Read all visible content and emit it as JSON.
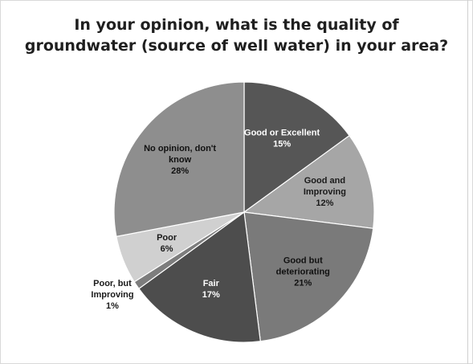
{
  "chart_data": {
    "type": "pie",
    "title_lines": [
      "In your opinion, what is the quality of",
      "groundwater (source of well water) in your area?"
    ],
    "slices": [
      {
        "label_lines": [
          "Good or Excellent"
        ],
        "value": 15,
        "value_text": "15%",
        "color": "#565656",
        "label_color": "#ffffff",
        "label_outside": false
      },
      {
        "label_lines": [
          "Good and",
          "Improving"
        ],
        "value": 12,
        "value_text": "12%",
        "color": "#a6a6a6",
        "label_color": "#1a1a1a",
        "label_outside": false
      },
      {
        "label_lines": [
          "Good but",
          "deteriorating"
        ],
        "value": 21,
        "value_text": "21%",
        "color": "#7a7a7a",
        "label_color": "#111111",
        "label_outside": false
      },
      {
        "label_lines": [
          "Fair"
        ],
        "value": 17,
        "value_text": "17%",
        "color": "#4d4d4d",
        "label_color": "#ffffff",
        "label_outside": false
      },
      {
        "label_lines": [
          "Poor, but",
          "Improving"
        ],
        "value": 1,
        "value_text": "1%",
        "color": "#7d7d7d",
        "label_color": "#1a1a1a",
        "label_outside": true
      },
      {
        "label_lines": [
          "Poor"
        ],
        "value": 6,
        "value_text": "6%",
        "color": "#d0d0d0",
        "label_color": "#1a1a1a",
        "label_outside": false
      },
      {
        "label_lines": [
          "No opinion, don't",
          "know"
        ],
        "value": 28,
        "value_text": "28%",
        "color": "#8e8e8e",
        "label_color": "#111111",
        "label_outside": false
      }
    ],
    "legend": "none"
  }
}
